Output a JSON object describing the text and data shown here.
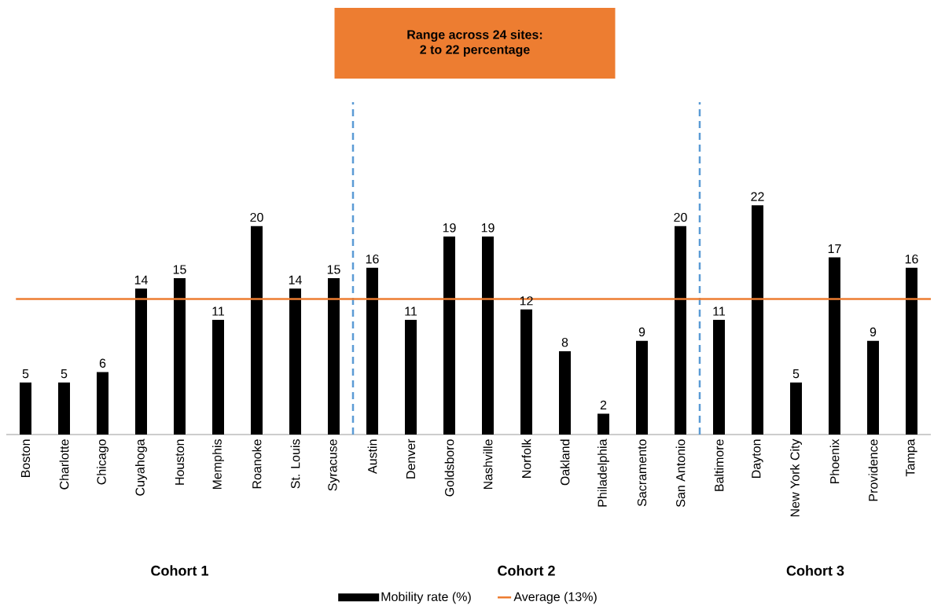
{
  "chart_data": {
    "type": "bar",
    "title": "Range across 24 sites:\n2 to 22 percentage",
    "categories": [
      "Boston",
      "Charlotte",
      "Chicago",
      "Cuyahoga",
      "Houston",
      "Memphis",
      "Roanoke",
      "St. Louis",
      "Syracuse",
      "Austin",
      "Denver",
      "Goldsboro",
      "Nashville",
      "Norfolk",
      "Oakland",
      "Philadelphia",
      "Sacramento",
      "San Antonio",
      "Baltimore",
      "Dayton",
      "New York City",
      "Phoenix",
      "Providence",
      "Tampa"
    ],
    "series": [
      {
        "name": "Mobility rate (%)",
        "color": "#000000",
        "values": [
          5,
          5,
          6,
          14,
          15,
          11,
          20,
          14,
          15,
          16,
          11,
          19,
          19,
          12,
          8,
          2,
          9,
          20,
          11,
          22,
          5,
          17,
          9,
          16
        ]
      }
    ],
    "data_labels": true,
    "ref_lines": [
      {
        "axis": "y",
        "value": 13,
        "label": "Average (13%)",
        "color": "#ed7d31"
      }
    ],
    "annotations": [
      "Cohort 1",
      "Cohort 2",
      "Cohort 3"
    ],
    "legend": "bottom"
  }
}
